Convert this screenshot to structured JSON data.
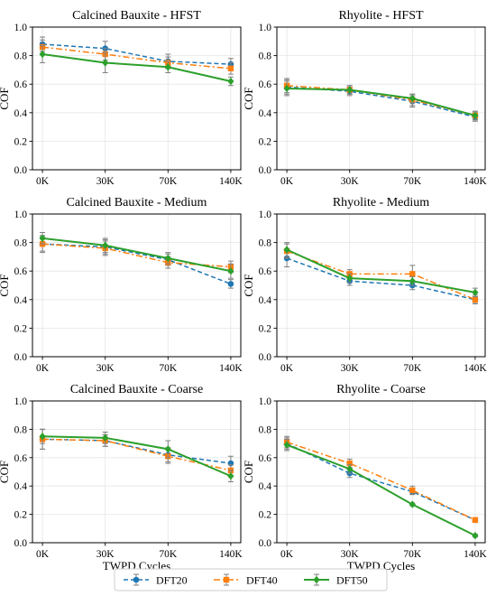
{
  "figure": {
    "x_axis_label": "TWPD Cycles",
    "legend": {
      "placement": "bottom-center",
      "entries": [
        {
          "name": "DFT20",
          "color": "#1f77b4",
          "marker": "circle",
          "line": "dashed"
        },
        {
          "name": "DFT40",
          "color": "#ff7f0e",
          "marker": "square",
          "line": "dashdot"
        },
        {
          "name": "DFT50",
          "color": "#2ca02c",
          "marker": "diamond",
          "line": "solid"
        }
      ]
    },
    "error_bar_color": "#808080"
  },
  "chart_data": [
    {
      "type": "line",
      "title": "Calcined Bauxite - HFST",
      "xlabel": "",
      "ylabel": "COF",
      "categories": [
        "0K",
        "30K",
        "70K",
        "140K"
      ],
      "ylim": [
        0.0,
        1.0
      ],
      "yticks": [
        "0.0",
        "0.2",
        "0.4",
        "0.6",
        "0.8",
        "1.0"
      ],
      "grid": true,
      "series": [
        {
          "name": "DFT20",
          "values": [
            0.88,
            0.85,
            0.76,
            0.74
          ],
          "errors": [
            0.05,
            0.05,
            0.05,
            0.04
          ]
        },
        {
          "name": "DFT40",
          "values": [
            0.86,
            0.81,
            0.75,
            0.71
          ],
          "errors": [
            0.05,
            0.04,
            0.04,
            0.04
          ]
        },
        {
          "name": "DFT50",
          "values": [
            0.81,
            0.75,
            0.72,
            0.62
          ],
          "errors": [
            0.06,
            0.07,
            0.04,
            0.03
          ]
        }
      ]
    },
    {
      "type": "line",
      "title": "Rhyolite - HFST",
      "xlabel": "",
      "ylabel": "COF",
      "categories": [
        "0K",
        "30K",
        "70K",
        "140K"
      ],
      "ylim": [
        0.0,
        1.0
      ],
      "yticks": [
        "0.0",
        "0.2",
        "0.4",
        "0.6",
        "0.8",
        "1.0"
      ],
      "grid": true,
      "series": [
        {
          "name": "DFT20",
          "values": [
            0.58,
            0.55,
            0.48,
            0.37
          ],
          "errors": [
            0.05,
            0.03,
            0.04,
            0.03
          ]
        },
        {
          "name": "DFT40",
          "values": [
            0.59,
            0.56,
            0.49,
            0.38
          ],
          "errors": [
            0.05,
            0.03,
            0.04,
            0.03
          ]
        },
        {
          "name": "DFT50",
          "values": [
            0.57,
            0.56,
            0.5,
            0.38
          ],
          "errors": [
            0.05,
            0.03,
            0.03,
            0.03
          ]
        }
      ]
    },
    {
      "type": "line",
      "title": "Calcined Bauxite - Medium",
      "xlabel": "",
      "ylabel": "COF",
      "categories": [
        "0K",
        "30K",
        "70K",
        "140K"
      ],
      "ylim": [
        0.0,
        1.0
      ],
      "yticks": [
        "0.0",
        "0.2",
        "0.4",
        "0.6",
        "0.8",
        "1.0"
      ],
      "grid": true,
      "series": [
        {
          "name": "DFT20",
          "values": [
            0.79,
            0.77,
            0.68,
            0.51
          ],
          "errors": [
            0.05,
            0.05,
            0.04,
            0.03
          ]
        },
        {
          "name": "DFT40",
          "values": [
            0.79,
            0.76,
            0.66,
            0.63
          ],
          "errors": [
            0.06,
            0.05,
            0.04,
            0.04
          ]
        },
        {
          "name": "DFT50",
          "values": [
            0.83,
            0.78,
            0.69,
            0.6
          ],
          "errors": [
            0.04,
            0.05,
            0.04,
            0.05
          ]
        }
      ]
    },
    {
      "type": "line",
      "title": "Rhyolite - Medium",
      "xlabel": "",
      "ylabel": "COF",
      "categories": [
        "0K",
        "30K",
        "70K",
        "140K"
      ],
      "ylim": [
        0.0,
        1.0
      ],
      "yticks": [
        "0.0",
        "0.2",
        "0.4",
        "0.6",
        "0.8",
        "1.0"
      ],
      "grid": true,
      "series": [
        {
          "name": "DFT20",
          "values": [
            0.69,
            0.53,
            0.5,
            0.4
          ],
          "errors": [
            0.06,
            0.03,
            0.03,
            0.02
          ]
        },
        {
          "name": "DFT40",
          "values": [
            0.74,
            0.58,
            0.58,
            0.4
          ],
          "errors": [
            0.05,
            0.03,
            0.06,
            0.03
          ]
        },
        {
          "name": "DFT50",
          "values": [
            0.75,
            0.55,
            0.53,
            0.45
          ],
          "errors": [
            0.05,
            0.03,
            0.03,
            0.03
          ]
        }
      ]
    },
    {
      "type": "line",
      "title": "Calcined Bauxite - Coarse",
      "xlabel": "TWPD Cycles",
      "ylabel": "COF",
      "categories": [
        "0K",
        "30K",
        "70K",
        "140K"
      ],
      "ylim": [
        0.0,
        1.0
      ],
      "yticks": [
        "0.0",
        "0.2",
        "0.4",
        "0.6",
        "0.8",
        "1.0"
      ],
      "grid": true,
      "series": [
        {
          "name": "DFT20",
          "values": [
            0.73,
            0.72,
            0.62,
            0.56
          ],
          "errors": [
            0.07,
            0.04,
            0.05,
            0.05
          ]
        },
        {
          "name": "DFT40",
          "values": [
            0.73,
            0.72,
            0.61,
            0.51
          ],
          "errors": [
            0.07,
            0.04,
            0.05,
            0.04
          ]
        },
        {
          "name": "DFT50",
          "values": [
            0.75,
            0.74,
            0.66,
            0.47
          ],
          "errors": [
            0.05,
            0.04,
            0.06,
            0.04
          ]
        }
      ]
    },
    {
      "type": "line",
      "title": "Rhyolite - Coarse",
      "xlabel": "TWPD Cycles",
      "ylabel": "COF",
      "categories": [
        "0K",
        "30K",
        "70K",
        "140K"
      ],
      "ylim": [
        0.0,
        1.0
      ],
      "yticks": [
        "0.0",
        "0.2",
        "0.4",
        "0.6",
        "0.8",
        "1.0"
      ],
      "grid": true,
      "series": [
        {
          "name": "DFT20",
          "values": [
            0.7,
            0.49,
            0.36,
            0.16
          ],
          "errors": [
            0.04,
            0.03,
            0.02,
            0.01
          ]
        },
        {
          "name": "DFT40",
          "values": [
            0.71,
            0.56,
            0.37,
            0.16
          ],
          "errors": [
            0.04,
            0.03,
            0.03,
            0.01
          ]
        },
        {
          "name": "DFT50",
          "values": [
            0.69,
            0.52,
            0.27,
            0.05
          ],
          "errors": [
            0.04,
            0.03,
            0.01,
            0.01
          ]
        }
      ]
    }
  ]
}
